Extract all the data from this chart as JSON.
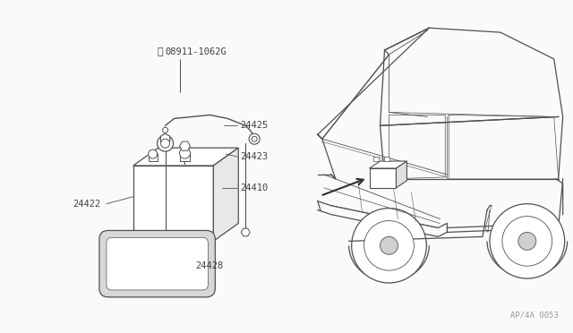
{
  "bg_color": "#FAFAFA",
  "line_color": "#505050",
  "text_color": "#404040",
  "fig_width": 6.4,
  "fig_height": 3.72,
  "dpi": 100,
  "watermark": "AP/4A 0053"
}
